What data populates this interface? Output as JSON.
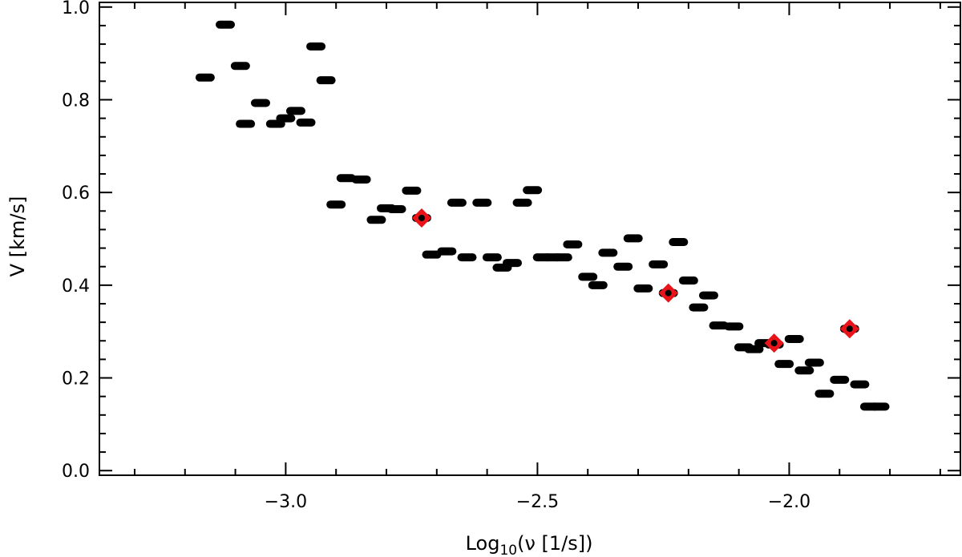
{
  "chart_data": {
    "type": "scatter",
    "title": "",
    "xlabel": {
      "base": "Log",
      "sub": "10",
      "rest": "(ν [1/s])"
    },
    "ylabel": "V [km/s]",
    "xlim": [
      -3.37,
      -1.66
    ],
    "ylim": [
      -0.01,
      1.01
    ],
    "xticks": [
      -3.0,
      -2.5,
      -2.0
    ],
    "xtick_labels": [
      "−3.0",
      "−2.5",
      "−2.0"
    ],
    "yticks": [
      0.0,
      0.2,
      0.4,
      0.6,
      0.8,
      1.0
    ],
    "ytick_labels": [
      "0.0",
      "0.2",
      "0.4",
      "0.6",
      "0.8",
      "1.0"
    ],
    "grid": false,
    "legend": "none",
    "colors": {
      "black": "#000000",
      "highlight": "#e8141a"
    },
    "series": [
      {
        "marker": "dash",
        "points": [
          [
            -3.16,
            0.848
          ],
          [
            -3.12,
            0.962
          ],
          [
            -3.09,
            0.873
          ],
          [
            -3.08,
            0.748
          ],
          [
            -3.05,
            0.793
          ],
          [
            -3.02,
            0.748
          ],
          [
            -3.0,
            0.76
          ],
          [
            -2.98,
            0.776
          ],
          [
            -2.96,
            0.751
          ],
          [
            -2.94,
            0.915
          ],
          [
            -2.92,
            0.842
          ],
          [
            -2.9,
            0.574
          ],
          [
            -2.88,
            0.631
          ],
          [
            -2.85,
            0.628
          ],
          [
            -2.82,
            0.541
          ],
          [
            -2.8,
            0.566
          ],
          [
            -2.78,
            0.564
          ],
          [
            -2.75,
            0.604
          ],
          [
            -2.73,
            0.545
          ],
          [
            -2.71,
            0.466
          ],
          [
            -2.68,
            0.473
          ],
          [
            -2.66,
            0.578
          ],
          [
            -2.64,
            0.46
          ],
          [
            -2.61,
            0.578
          ],
          [
            -2.59,
            0.46
          ],
          [
            -2.57,
            0.438
          ],
          [
            -2.55,
            0.448
          ],
          [
            -2.53,
            0.578
          ],
          [
            -2.51,
            0.605
          ],
          [
            -2.49,
            0.46
          ],
          [
            -2.47,
            0.46
          ],
          [
            -2.45,
            0.46
          ],
          [
            -2.43,
            0.488
          ],
          [
            -2.4,
            0.418
          ],
          [
            -2.38,
            0.4
          ],
          [
            -2.36,
            0.47
          ],
          [
            -2.33,
            0.44
          ],
          [
            -2.31,
            0.501
          ],
          [
            -2.29,
            0.393
          ],
          [
            -2.26,
            0.445
          ],
          [
            -2.24,
            0.383
          ],
          [
            -2.22,
            0.493
          ],
          [
            -2.2,
            0.41
          ],
          [
            -2.18,
            0.352
          ],
          [
            -2.16,
            0.378
          ],
          [
            -2.14,
            0.313
          ],
          [
            -2.11,
            0.311
          ],
          [
            -2.09,
            0.266
          ],
          [
            -2.07,
            0.262
          ],
          [
            -2.05,
            0.275
          ],
          [
            -2.03,
            0.272
          ],
          [
            -2.01,
            0.23
          ],
          [
            -1.99,
            0.284
          ],
          [
            -1.97,
            0.216
          ],
          [
            -1.95,
            0.233
          ],
          [
            -1.93,
            0.166
          ],
          [
            -1.9,
            0.196
          ],
          [
            -1.88,
            0.306
          ],
          [
            -1.86,
            0.186
          ],
          [
            -1.84,
            0.138
          ],
          [
            -1.82,
            0.138
          ]
        ]
      },
      {
        "marker": "diamond",
        "points": [
          [
            -2.73,
            0.545
          ],
          [
            -2.24,
            0.383
          ],
          [
            -2.03,
            0.275
          ],
          [
            -1.88,
            0.306
          ]
        ]
      }
    ]
  }
}
